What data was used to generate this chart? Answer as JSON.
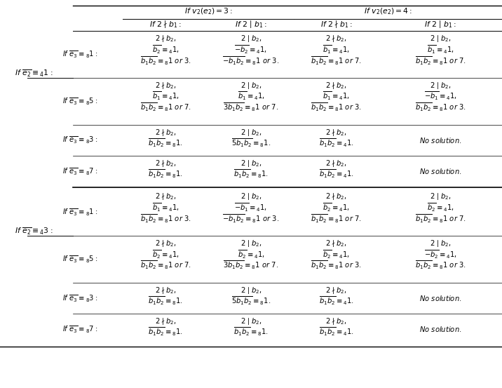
{
  "background_color": "#ffffff",
  "figsize": [
    7.16,
    5.53
  ],
  "dpi": 100,
  "fs": 7.2,
  "fs_hdr": 7.8
}
